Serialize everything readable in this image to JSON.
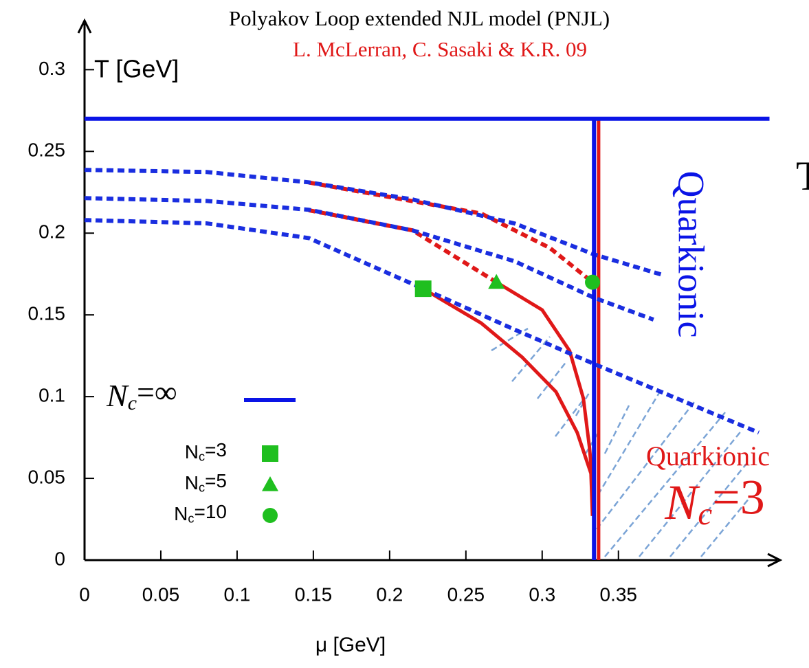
{
  "chart_data": {
    "type": "line",
    "title": "Polyakov Loop extended NJL model (PNJL)",
    "subtitle": "L. McLerran, C. Sasaki & K.R.  09",
    "x_label": "μ [GeV]",
    "y_label": "T [GeV]",
    "xlim": [
      0,
      0.456
    ],
    "ylim": [
      0,
      0.33
    ],
    "xticks": [
      0,
      0.05,
      0.1,
      0.15,
      0.2,
      0.25,
      0.3,
      0.35
    ],
    "yticks": [
      0,
      0.05,
      0.1,
      0.15,
      0.2,
      0.25,
      0.3
    ],
    "series": [
      {
        "name": "Nc=∞",
        "color": "#0a14e6",
        "kind": "line",
        "x": [
          0,
          0.449,
          null,
          0.334,
          0.334
        ],
        "y": [
          0.27,
          0.27,
          null,
          0.27,
          0
        ]
      },
      {
        "name": "Nc=3",
        "color": "#1fbf1f",
        "kind": "square",
        "x": [
          0.222
        ],
        "y": [
          0.166
        ]
      },
      {
        "name": "Nc=5",
        "color": "#1fbf1f",
        "kind": "triangle",
        "x": [
          0.27
        ],
        "y": [
          0.17
        ]
      },
      {
        "name": "Nc=10",
        "color": "#1fbf1f",
        "kind": "circle",
        "x": [
          0.333
        ],
        "y": [
          0.17
        ]
      }
    ],
    "curves": [
      {
        "color": "#e01818",
        "style": "dashed",
        "x": [
          0.147,
          0.26,
          0.305,
          0.333
        ],
        "y": [
          0.231,
          0.212,
          0.191,
          0.17
        ]
      },
      {
        "color": "#e01818",
        "style": "dashed",
        "x": [
          0.147,
          0.215,
          0.27
        ],
        "y": [
          0.214,
          0.2017,
          0.17
        ]
      },
      {
        "color": "#e01818",
        "style": "solid",
        "x": [
          0.222,
          0.26,
          0.287,
          0.309,
          0.323,
          0.332,
          0.333
        ],
        "y": [
          0.166,
          0.145,
          0.124,
          0.103,
          0.078,
          0.053,
          0.027
        ]
      },
      {
        "color": "#e01818",
        "style": "solid",
        "x": [
          0.27,
          0.3,
          0.318,
          0.327,
          0.331,
          0.333
        ],
        "y": [
          0.17,
          0.153,
          0.128,
          0.099,
          0.069,
          0.048
        ]
      },
      {
        "color": "#e01818",
        "style": "solid",
        "x": [
          0.337,
          0.337
        ],
        "y": [
          0,
          0.27
        ]
      },
      {
        "color": "#1a2ee0",
        "style": "dashed",
        "x": [
          0,
          0.08,
          0.147,
          0.215,
          0.282,
          0.334,
          0.379
        ],
        "y": [
          0.2387,
          0.2374,
          0.2311,
          0.2206,
          0.2059,
          0.187,
          0.1744
        ]
      },
      {
        "color": "#1a2ee0",
        "style": "dashed",
        "x": [
          0,
          0.08,
          0.147,
          0.215,
          0.282,
          0.334,
          0.373
        ],
        "y": [
          0.2214,
          0.2197,
          0.2143,
          0.2017,
          0.1828,
          0.1605,
          0.1471
        ]
      },
      {
        "color": "#1a2ee0",
        "style": "dashed",
        "x": [
          0,
          0.08,
          0.147,
          0.222,
          0.282,
          0.334,
          0.442
        ],
        "y": [
          0.208,
          0.206,
          0.197,
          0.166,
          0.141,
          0.12,
          0.078
        ]
      }
    ],
    "annotations": [
      "Quarkionic",
      "Quarkionic",
      "Nc=3",
      "T"
    ]
  }
}
